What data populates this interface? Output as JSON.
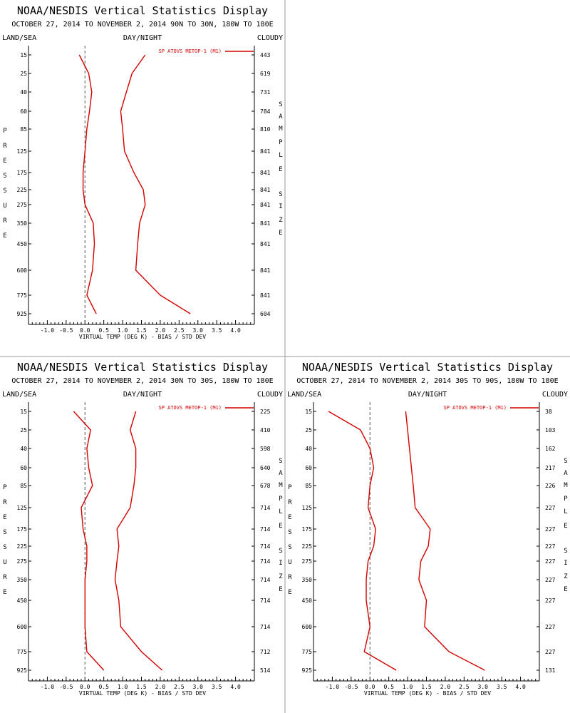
{
  "window": {
    "background": "#ffffff",
    "divider_color": "#999999"
  },
  "colors": {
    "series": "#d40000",
    "axis": "#000000",
    "zero_line": "#555555"
  },
  "common": {
    "title": "NOAA/NESDIS Vertical Statistics Display",
    "label_left": "LAND/SEA",
    "label_center": "DAY/NIGHT",
    "label_right": "CLOUDY",
    "left_vertical_label": "PRESSURE",
    "right_vertical_label": "SAMPLE SIZE",
    "xlabel": "VIRTUAL TEMP (DEG K) - BIAS / STD DEV",
    "legend_label": "SP ATOVS METOP-1 (M1)"
  },
  "chart_data": [
    {
      "type": "line",
      "subtitle": "OCTOBER 27, 2014 TO NOVEMBER 2, 2014  90N TO 30N, 180W TO 180E",
      "pressure_levels": [
        "15",
        "25",
        "40",
        "60",
        "85",
        "125",
        "175",
        "225",
        "275",
        "350",
        "450",
        "600",
        "775",
        "925"
      ],
      "sample_size": [
        "443",
        "619",
        "731",
        "784",
        "810",
        "841",
        "841",
        "841",
        "841",
        "841",
        "841",
        "841",
        "841",
        "604"
      ],
      "x_ticks": [
        "-1.0",
        "-0.5",
        "0.0",
        "0.5",
        "1.0",
        "1.5",
        "2.0",
        "2.5",
        "3.0",
        "3.5",
        "4.0"
      ],
      "xlim": [
        -1.5,
        4.5
      ],
      "zero_line": true,
      "legend_position": "top-right",
      "series": [
        {
          "name": "bias",
          "values": [
            -0.15,
            0.1,
            0.18,
            0.12,
            0.05,
            0.0,
            -0.05,
            -0.05,
            0.0,
            0.22,
            0.25,
            0.2,
            0.05,
            0.3
          ]
        },
        {
          "name": "std_dev",
          "values": [
            1.6,
            1.25,
            1.1,
            0.95,
            1.0,
            1.05,
            1.3,
            1.55,
            1.6,
            1.45,
            1.4,
            1.35,
            2.0,
            2.8
          ]
        }
      ]
    },
    {
      "type": "line",
      "subtitle": "OCTOBER 27, 2014 TO NOVEMBER 2, 2014  30N TO 30S, 180W TO 180E",
      "pressure_levels": [
        "15",
        "25",
        "40",
        "60",
        "85",
        "125",
        "175",
        "225",
        "275",
        "350",
        "450",
        "600",
        "775",
        "925"
      ],
      "sample_size": [
        "225",
        "410",
        "598",
        "640",
        "678",
        "714",
        "714",
        "714",
        "714",
        "714",
        "714",
        "714",
        "712",
        "514"
      ],
      "x_ticks": [
        "-1.0",
        "-0.5",
        "0.0",
        "0.5",
        "1.0",
        "1.5",
        "2.0",
        "2.5",
        "3.0",
        "3.5",
        "4.0"
      ],
      "xlim": [
        -1.5,
        4.5
      ],
      "zero_line": true,
      "legend_position": "top-right",
      "series": [
        {
          "name": "bias",
          "values": [
            -0.3,
            0.15,
            0.05,
            0.1,
            0.2,
            -0.1,
            -0.05,
            0.05,
            0.05,
            0.0,
            0.0,
            0.0,
            0.05,
            0.5
          ]
        },
        {
          "name": "std_dev",
          "values": [
            1.35,
            1.2,
            1.35,
            1.35,
            1.3,
            1.2,
            0.85,
            0.9,
            0.85,
            0.8,
            0.9,
            0.95,
            1.5,
            2.05
          ]
        }
      ]
    },
    {
      "type": "line",
      "subtitle": "OCTOBER 27, 2014 TO NOVEMBER 2, 2014  30S TO 90S, 180W TO 180E",
      "pressure_levels": [
        "15",
        "25",
        "40",
        "60",
        "85",
        "125",
        "175",
        "225",
        "275",
        "350",
        "450",
        "600",
        "775",
        "925"
      ],
      "sample_size": [
        "38",
        "103",
        "162",
        "217",
        "226",
        "227",
        "227",
        "227",
        "227",
        "227",
        "227",
        "227",
        "227",
        "131"
      ],
      "x_ticks": [
        "-1.0",
        "-0.5",
        "0.0",
        "0.5",
        "1.0",
        "1.5",
        "2.0",
        "2.5",
        "3.0",
        "3.5",
        "4.0"
      ],
      "xlim": [
        -1.5,
        4.5
      ],
      "zero_line": true,
      "legend_position": "top-right",
      "series": [
        {
          "name": "bias",
          "values": [
            -1.1,
            -0.25,
            0.0,
            0.1,
            0.0,
            -0.05,
            0.15,
            0.1,
            -0.05,
            -0.1,
            -0.1,
            0.0,
            -0.15,
            0.7
          ]
        },
        {
          "name": "std_dev",
          "values": [
            0.95,
            1.0,
            1.05,
            1.1,
            1.15,
            1.2,
            1.6,
            1.55,
            1.35,
            1.3,
            1.5,
            1.45,
            2.1,
            3.05
          ]
        }
      ]
    }
  ]
}
